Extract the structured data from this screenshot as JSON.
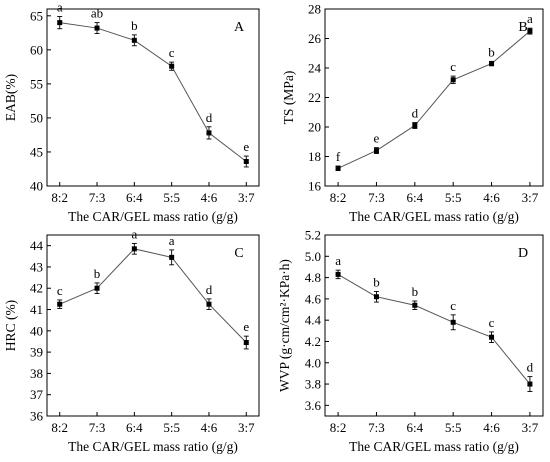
{
  "chart_data": [
    {
      "type": "line",
      "panel_label": "A",
      "ylabel": "EAB(%)",
      "xlabel": "The CAR/GEL mass ratio (g/g)",
      "categories": [
        "8:2",
        "7:3",
        "6:4",
        "5:5",
        "4:6",
        "3:7"
      ],
      "values": [
        64.0,
        63.2,
        61.4,
        57.6,
        47.8,
        43.6
      ],
      "errors": [
        0.9,
        0.8,
        0.8,
        0.6,
        0.9,
        0.8
      ],
      "letters": [
        "a",
        "ab",
        "b",
        "c",
        "d",
        "e"
      ],
      "ylim": [
        40,
        66
      ],
      "yticks": [
        40,
        45,
        50,
        55,
        60,
        65
      ],
      "ytick_labels": [
        "40",
        "45",
        "50",
        "55",
        "60",
        "65"
      ]
    },
    {
      "type": "line",
      "panel_label": "B",
      "ylabel": "TS (MPa)",
      "xlabel": "The CAR/GEL mass ratio (g/g)",
      "categories": [
        "8:2",
        "7:3",
        "6:4",
        "5:5",
        "4:6",
        "3:7"
      ],
      "values": [
        17.2,
        18.4,
        20.1,
        23.2,
        24.3,
        26.5
      ],
      "errors": [
        0.15,
        0.2,
        0.2,
        0.25,
        0.15,
        0.2
      ],
      "letters": [
        "f",
        "e",
        "d",
        "c",
        "b",
        "a"
      ],
      "ylim": [
        16,
        28
      ],
      "yticks": [
        16,
        18,
        20,
        22,
        24,
        26,
        28
      ],
      "ytick_labels": [
        "16",
        "18",
        "20",
        "22",
        "24",
        "26",
        "28"
      ]
    },
    {
      "type": "line",
      "panel_label": "C",
      "ylabel": "HRC (%)",
      "xlabel": "The CAR/GEL mass ratio (g/g)",
      "categories": [
        "8:2",
        "7:3",
        "6:4",
        "5:5",
        "4:6",
        "3:7"
      ],
      "values": [
        41.25,
        42.0,
        43.85,
        43.45,
        41.25,
        39.45
      ],
      "errors": [
        0.2,
        0.25,
        0.25,
        0.35,
        0.25,
        0.3
      ],
      "letters": [
        "c",
        "b",
        "a",
        "a",
        "d",
        "e"
      ],
      "ylim": [
        36,
        44.5
      ],
      "yticks": [
        36,
        37,
        38,
        39,
        40,
        41,
        42,
        43,
        44
      ],
      "ytick_labels": [
        "36",
        "37",
        "38",
        "39",
        "40",
        "41",
        "42",
        "43",
        "44"
      ]
    },
    {
      "type": "line",
      "panel_label": "D",
      "ylabel": "WVP (g·cm/cm²·KPa·h)",
      "xlabel": "The CAR/GEL mass ratio (g/g)",
      "categories": [
        "8:2",
        "7:3",
        "6:4",
        "5:5",
        "4:6",
        "3:7"
      ],
      "values": [
        4.83,
        4.62,
        4.54,
        4.38,
        4.24,
        3.8
      ],
      "errors": [
        0.04,
        0.05,
        0.04,
        0.07,
        0.05,
        0.07
      ],
      "letters": [
        "a",
        "b",
        "b",
        "c",
        "c",
        "d"
      ],
      "ylim": [
        3.5,
        5.2
      ],
      "yticks": [
        3.6,
        3.8,
        4.0,
        4.2,
        4.4,
        4.6,
        4.8,
        5.0,
        5.2
      ],
      "ytick_labels": [
        "3.6",
        "3.8",
        "4.0",
        "4.2",
        "4.4",
        "4.6",
        "4.8",
        "5.0",
        "5.2"
      ]
    }
  ]
}
